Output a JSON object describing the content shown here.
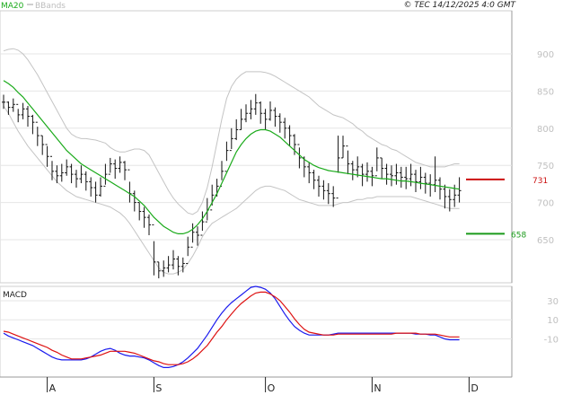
{
  "header": {
    "copyright": "© TEC 14/12/2025 4:0 GMT",
    "legend": [
      {
        "label": "MA20",
        "color": "#1aaa1a"
      },
      {
        "label": "BBands",
        "color": "#bdbdbd"
      }
    ]
  },
  "chart_data": [
    {
      "type": "ohlc",
      "panel": "price",
      "y_ticks": [
        650,
        700,
        750,
        800,
        850,
        900
      ],
      "ylim": [
        592,
        958
      ],
      "x_labels": [
        {
          "label": "A",
          "index": 9
        },
        {
          "label": "S",
          "index": 31
        },
        {
          "label": "O",
          "index": 54
        },
        {
          "label": "N",
          "index": 76
        },
        {
          "label": "D",
          "index": 96
        }
      ],
      "series": {
        "close": [
          835,
          828,
          832,
          818,
          826,
          816,
          808,
          790,
          778,
          762,
          742,
          736,
          740,
          748,
          738,
          732,
          738,
          728,
          720,
          710,
          722,
          738,
          752,
          746,
          754,
          744,
          712,
          700,
          688,
          680,
          670,
          620,
          608,
          612,
          616,
          624,
          614,
          618,
          640,
          660,
          656,
          674,
          690,
          710,
          722,
          742,
          770,
          786,
          798,
          812,
          820,
          826,
          834,
          820,
          812,
          824,
          816,
          808,
          800,
          790,
          778,
          760,
          748,
          740,
          730,
          722,
          716,
          712,
          706,
          760,
          776,
          752,
          744,
          748,
          738,
          742,
          736,
          760,
          746,
          738,
          736,
          740,
          734,
          732,
          738,
          728,
          734,
          726,
          724,
          730,
          718,
          708,
          704,
          710,
          716
        ],
        "high": [
          845,
          836,
          840,
          826,
          834,
          830,
          818,
          802,
          790,
          776,
          756,
          750,
          752,
          758,
          752,
          744,
          750,
          742,
          734,
          728,
          734,
          752,
          760,
          758,
          762,
          756,
          728,
          716,
          700,
          694,
          684,
          648,
          620,
          622,
          628,
          636,
          628,
          626,
          654,
          672,
          668,
          688,
          706,
          724,
          732,
          756,
          782,
          800,
          812,
          826,
          832,
          838,
          846,
          836,
          826,
          836,
          828,
          820,
          814,
          804,
          792,
          774,
          762,
          754,
          744,
          736,
          730,
          726,
          722,
          790,
          790,
          770,
          756,
          762,
          752,
          754,
          748,
          774,
          760,
          752,
          750,
          752,
          748,
          748,
          752,
          744,
          748,
          740,
          738,
          762,
          734,
          724,
          718,
          724,
          734
        ],
        "low": [
          826,
          818,
          822,
          808,
          812,
          802,
          792,
          776,
          764,
          748,
          730,
          726,
          728,
          736,
          726,
          720,
          726,
          716,
          708,
          700,
          708,
          724,
          740,
          732,
          740,
          730,
          700,
          688,
          676,
          666,
          656,
          602,
          598,
          600,
          606,
          610,
          602,
          606,
          628,
          646,
          642,
          662,
          676,
          696,
          708,
          730,
          756,
          772,
          784,
          798,
          808,
          812,
          818,
          806,
          798,
          810,
          802,
          794,
          786,
          776,
          764,
          746,
          734,
          726,
          718,
          708,
          704,
          698,
          694,
          740,
          760,
          738,
          730,
          734,
          722,
          728,
          722,
          742,
          732,
          724,
          722,
          724,
          720,
          718,
          722,
          714,
          718,
          712,
          708,
          714,
          704,
          692,
          688,
          694,
          700
        ]
      },
      "ma20": [
        864,
        860,
        855,
        848,
        842,
        834,
        826,
        818,
        810,
        802,
        794,
        786,
        778,
        770,
        764,
        758,
        752,
        748,
        744,
        740,
        736,
        732,
        728,
        724,
        720,
        716,
        712,
        708,
        702,
        696,
        688,
        680,
        674,
        668,
        664,
        660,
        658,
        658,
        660,
        664,
        670,
        678,
        688,
        700,
        712,
        726,
        740,
        754,
        768,
        778,
        786,
        792,
        796,
        798,
        798,
        796,
        792,
        788,
        782,
        776,
        770,
        764,
        758,
        754,
        750,
        747,
        745,
        743,
        742,
        741,
        740,
        739,
        738,
        737,
        736,
        735,
        734,
        733,
        732,
        732,
        731,
        730,
        729,
        729,
        728,
        727,
        726,
        725,
        724,
        723,
        722,
        721,
        720,
        719,
        718
      ],
      "bb_upper": [
        904,
        906,
        907,
        905,
        900,
        892,
        882,
        872,
        860,
        848,
        836,
        824,
        812,
        800,
        792,
        788,
        786,
        786,
        785,
        784,
        782,
        780,
        774,
        770,
        768,
        768,
        770,
        772,
        772,
        770,
        764,
        752,
        740,
        728,
        716,
        706,
        698,
        692,
        686,
        684,
        688,
        700,
        720,
        748,
        780,
        812,
        840,
        856,
        866,
        872,
        876,
        876,
        876,
        876,
        875,
        873,
        870,
        866,
        862,
        858,
        854,
        850,
        846,
        842,
        836,
        830,
        826,
        822,
        818,
        816,
        814,
        810,
        806,
        800,
        796,
        790,
        786,
        782,
        778,
        776,
        772,
        770,
        766,
        762,
        758,
        754,
        752,
        750,
        748,
        748,
        748,
        748,
        750,
        752,
        752
      ],
      "bb_lower": [
        830,
        820,
        808,
        796,
        786,
        776,
        768,
        760,
        752,
        744,
        736,
        728,
        722,
        716,
        712,
        708,
        706,
        704,
        702,
        700,
        698,
        696,
        694,
        690,
        686,
        680,
        672,
        662,
        652,
        642,
        632,
        622,
        612,
        606,
        604,
        604,
        606,
        610,
        618,
        628,
        640,
        654,
        664,
        672,
        676,
        680,
        684,
        688,
        692,
        698,
        704,
        710,
        716,
        720,
        722,
        722,
        720,
        718,
        716,
        712,
        708,
        704,
        702,
        700,
        698,
        696,
        696,
        696,
        696,
        698,
        700,
        700,
        702,
        704,
        704,
        706,
        706,
        708,
        708,
        708,
        708,
        708,
        708,
        708,
        708,
        706,
        704,
        702,
        700,
        698,
        696,
        694,
        692,
        692,
        692
      ],
      "markers": [
        {
          "label": "731",
          "value": 731,
          "color": "#cc1111"
        },
        {
          "label": "658",
          "value": 658,
          "color": "#1a9a1a"
        }
      ]
    },
    {
      "type": "line",
      "panel": "macd",
      "title": "MACD",
      "y_ticks": [
        {
          "label": "30",
          "value": 30
        },
        {
          "label": "10",
          "value": 10
        },
        {
          "label": "-10",
          "value": -10
        }
      ],
      "ylim": [
        -50,
        45
      ],
      "series": [
        {
          "color": "#1a1aee",
          "values": [
            -4,
            -7,
            -9,
            -11,
            -13,
            -15,
            -17,
            -20,
            -23,
            -26,
            -29,
            -31,
            -32,
            -32,
            -32,
            -32,
            -32,
            -31,
            -29,
            -26,
            -23,
            -21,
            -20,
            -22,
            -25,
            -27,
            -28,
            -28,
            -29,
            -30,
            -32,
            -35,
            -38,
            -40,
            -40,
            -39,
            -37,
            -34,
            -30,
            -25,
            -20,
            -13,
            -6,
            2,
            10,
            17,
            23,
            28,
            32,
            36,
            40,
            44,
            45,
            44,
            42,
            38,
            32,
            24,
            16,
            9,
            3,
            -1,
            -4,
            -6,
            -6,
            -6,
            -6,
            -6,
            -5,
            -4,
            -4,
            -4,
            -4,
            -4,
            -4,
            -4,
            -4,
            -4,
            -4,
            -4,
            -4,
            -4,
            -4,
            -4,
            -4,
            -5,
            -5,
            -5,
            -6,
            -6,
            -8,
            -10,
            -11,
            -11,
            -11
          ]
        },
        {
          "color": "#dd1111",
          "values": [
            -2,
            -3,
            -5,
            -7,
            -9,
            -11,
            -13,
            -15,
            -17,
            -19,
            -22,
            -24,
            -27,
            -29,
            -31,
            -31,
            -31,
            -30,
            -29,
            -28,
            -27,
            -25,
            -23,
            -23,
            -23,
            -23,
            -24,
            -25,
            -27,
            -29,
            -31,
            -33,
            -34,
            -36,
            -37,
            -37,
            -37,
            -36,
            -34,
            -31,
            -27,
            -22,
            -17,
            -10,
            -3,
            3,
            10,
            16,
            22,
            27,
            31,
            35,
            38,
            39,
            39,
            37,
            34,
            30,
            24,
            18,
            11,
            5,
            0,
            -3,
            -4,
            -5,
            -6,
            -6,
            -6,
            -5,
            -5,
            -5,
            -5,
            -5,
            -5,
            -5,
            -5,
            -5,
            -5,
            -5,
            -5,
            -4,
            -4,
            -4,
            -4,
            -4,
            -5,
            -5,
            -5,
            -5,
            -6,
            -7,
            -8,
            -8,
            -8
          ]
        }
      ]
    }
  ]
}
